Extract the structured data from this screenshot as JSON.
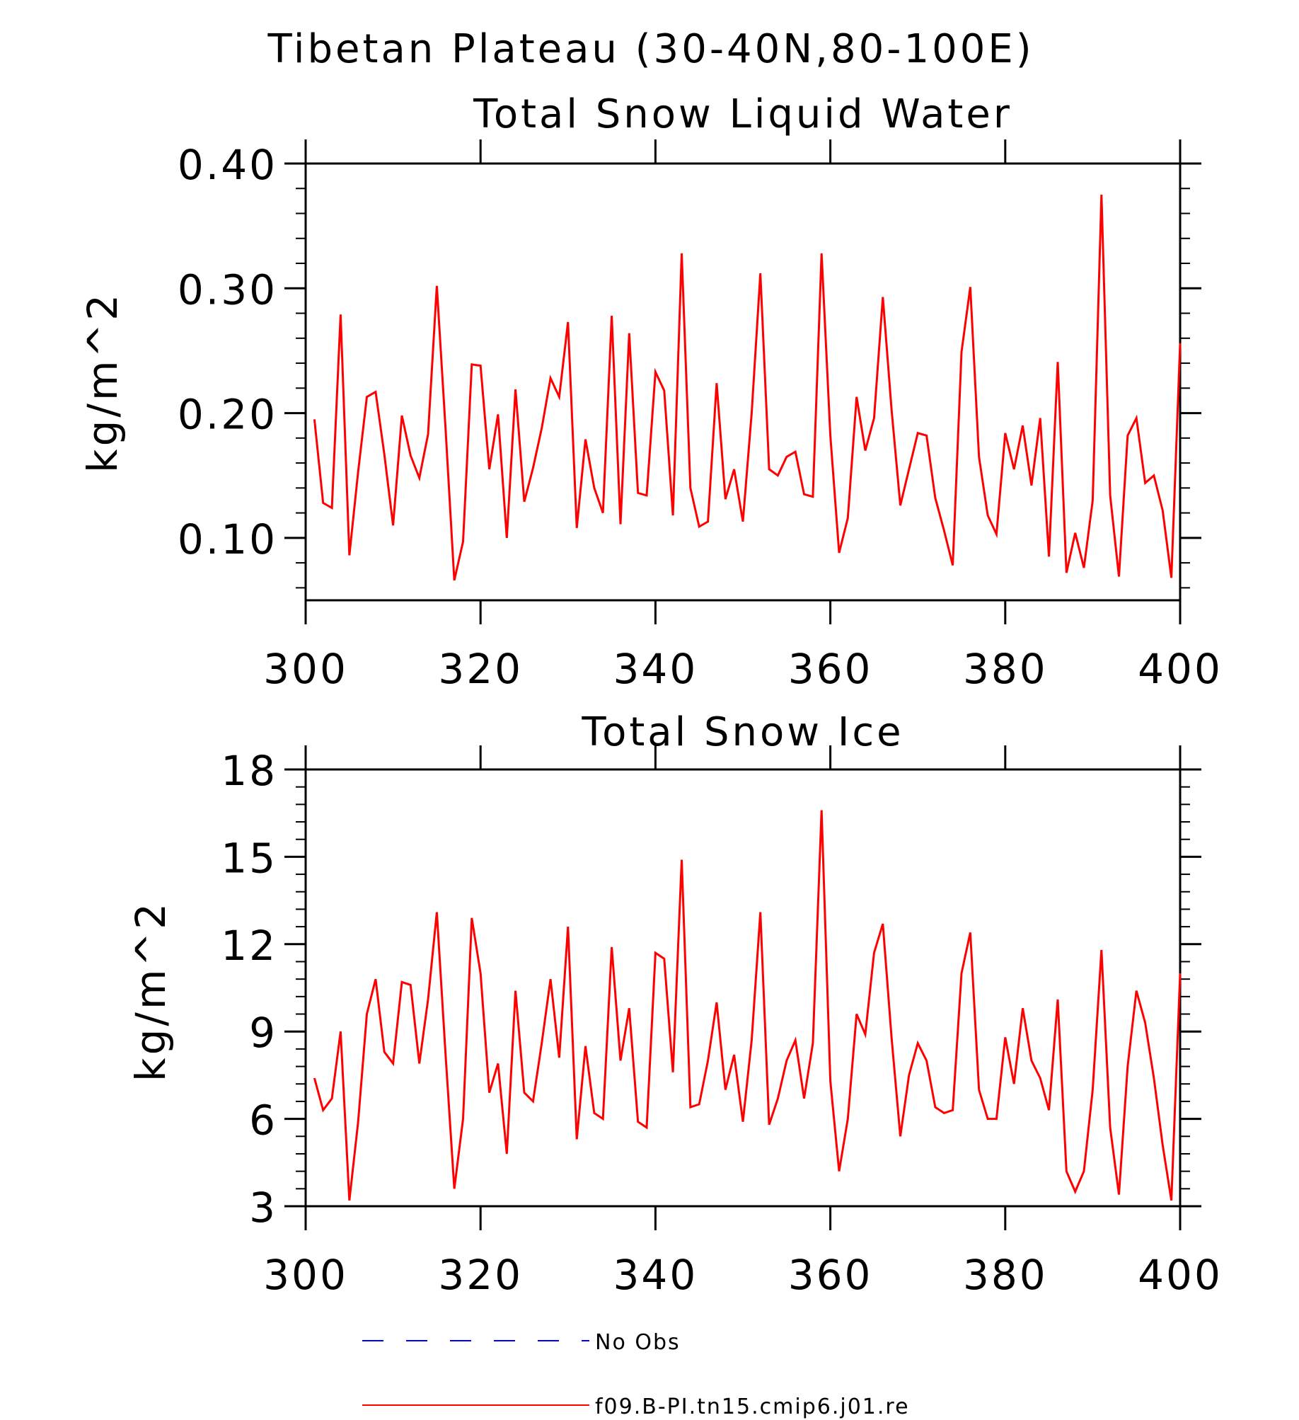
{
  "figure": {
    "title": "Tibetan Plateau (30-40N,80-100E)"
  },
  "chart_data": [
    {
      "type": "line",
      "title": "Total Snow Liquid Water",
      "ylabel": "kg/m^2",
      "xlabel": "",
      "xlim": [
        300,
        400
      ],
      "ylim": [
        0.05,
        0.4
      ],
      "xticks": [
        300,
        320,
        340,
        360,
        380,
        400
      ],
      "yticks": [
        0.1,
        0.2,
        0.3,
        0.4
      ],
      "ytick_labels": [
        "0.10",
        "0.20",
        "0.30",
        "0.40"
      ],
      "x_start": 301,
      "series": [
        {
          "name": "f09.B-PI.tn15.cmip6.j01.re",
          "color": "#ff0000",
          "values": [
            0.195,
            0.128,
            0.124,
            0.279,
            0.086,
            0.153,
            0.213,
            0.217,
            0.167,
            0.11,
            0.198,
            0.166,
            0.148,
            0.183,
            0.302,
            0.187,
            0.066,
            0.097,
            0.239,
            0.238,
            0.155,
            0.199,
            0.1,
            0.219,
            0.129,
            0.156,
            0.188,
            0.228,
            0.213,
            0.273,
            0.108,
            0.179,
            0.14,
            0.12,
            0.278,
            0.111,
            0.264,
            0.136,
            0.134,
            0.233,
            0.218,
            0.118,
            0.328,
            0.14,
            0.109,
            0.113,
            0.224,
            0.131,
            0.155,
            0.113,
            0.2,
            0.312,
            0.155,
            0.15,
            0.165,
            0.169,
            0.135,
            0.133,
            0.328,
            0.182,
            0.088,
            0.116,
            0.213,
            0.17,
            0.196,
            0.293,
            0.203,
            0.126,
            0.155,
            0.184,
            0.182,
            0.132,
            0.106,
            0.078,
            0.249,
            0.301,
            0.165,
            0.118,
            0.103,
            0.184,
            0.155,
            0.19,
            0.142,
            0.196,
            0.085,
            0.241,
            0.072,
            0.104,
            0.076,
            0.13,
            0.375,
            0.134,
            0.069,
            0.182,
            0.196,
            0.144,
            0.15,
            0.122,
            0.068,
            0.256
          ]
        }
      ]
    },
    {
      "type": "line",
      "title": "Total Snow Ice",
      "ylabel": "kg/m^2",
      "xlabel": "",
      "xlim": [
        300,
        400
      ],
      "ylim": [
        3,
        18
      ],
      "xticks": [
        300,
        320,
        340,
        360,
        380,
        400
      ],
      "yticks": [
        3,
        6,
        9,
        12,
        15,
        18
      ],
      "ytick_labels": [
        "3",
        "6",
        "9",
        "12",
        "15",
        "18"
      ],
      "x_start": 301,
      "series": [
        {
          "name": "f09.B-PI.tn15.cmip6.j01.re",
          "color": "#ff0000",
          "values": [
            7.4,
            6.3,
            6.7,
            9.0,
            3.2,
            5.9,
            9.6,
            10.8,
            8.3,
            7.9,
            10.7,
            10.6,
            7.9,
            10.1,
            13.1,
            8.2,
            3.6,
            6.0,
            12.9,
            11.0,
            6.9,
            7.9,
            4.8,
            10.4,
            6.9,
            6.6,
            8.6,
            10.8,
            8.1,
            12.6,
            5.3,
            8.5,
            6.2,
            6.0,
            11.9,
            8.0,
            9.8,
            5.9,
            5.7,
            11.7,
            11.5,
            7.6,
            14.9,
            6.4,
            6.5,
            8.0,
            10.0,
            7.0,
            8.2,
            5.9,
            8.7,
            13.1,
            5.8,
            6.7,
            8.0,
            8.7,
            6.7,
            8.6,
            16.6,
            7.3,
            4.2,
            6.0,
            9.6,
            8.9,
            11.7,
            12.7,
            8.8,
            5.4,
            7.5,
            8.6,
            8.0,
            6.4,
            6.2,
            6.3,
            11.0,
            12.4,
            7.0,
            6.0,
            6.0,
            8.8,
            7.2,
            9.8,
            8.0,
            7.4,
            6.3,
            10.1,
            4.2,
            3.5,
            4.2,
            7.0,
            11.8,
            5.7,
            3.4,
            7.8,
            10.4,
            9.3,
            7.4,
            5.1,
            3.2,
            11.0
          ]
        }
      ]
    }
  ],
  "legend": {
    "items": [
      {
        "label": "No Obs",
        "color": "#0000ff",
        "style": "dashed"
      },
      {
        "label": "f09.B-PI.tn15.cmip6.j01.re",
        "color": "#ff0000",
        "style": "solid"
      }
    ]
  }
}
